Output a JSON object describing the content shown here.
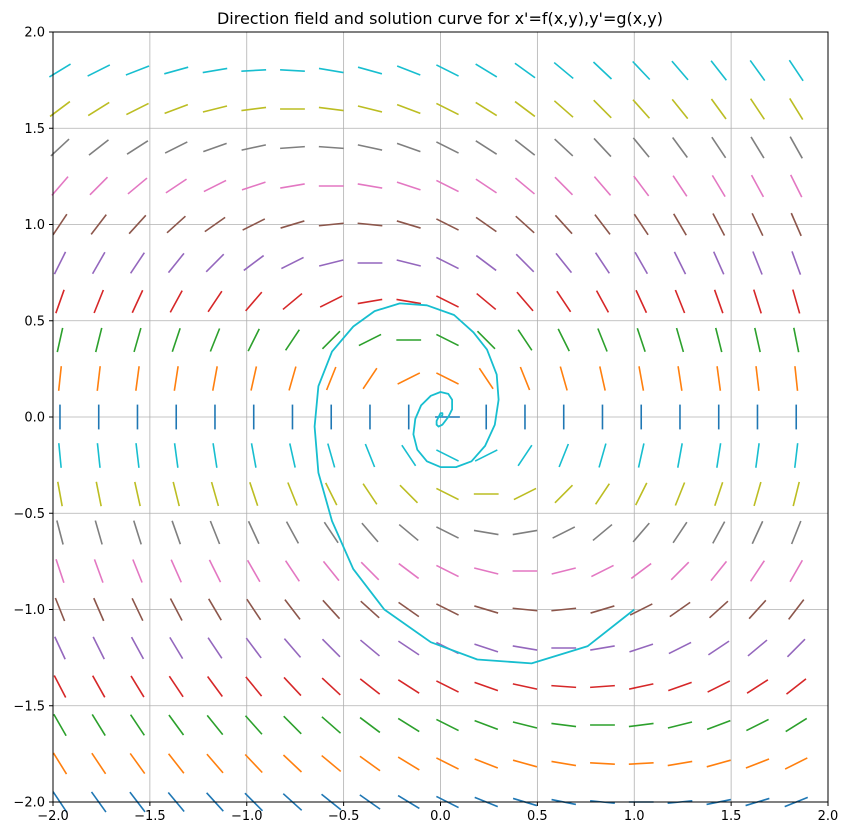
{
  "chart_data": {
    "type": "line",
    "title": "Direction field and solution curve for x'=f(x,y),y'=g(x,y)",
    "xlabel": "",
    "ylabel": "",
    "xlim": [
      -2.0,
      2.0
    ],
    "ylim": [
      -2.0,
      2.0
    ],
    "grid": true,
    "x_ticks": [
      -2.0,
      -1.5,
      -1.0,
      -0.5,
      0.0,
      0.5,
      1.0,
      1.5,
      2.0
    ],
    "x_tick_labels": [
      "−2.0",
      "−1.5",
      "−1.0",
      "−0.5",
      "0.0",
      "0.5",
      "1.0",
      "1.5",
      "2.0"
    ],
    "y_ticks": [
      -2.0,
      -1.5,
      -1.0,
      -0.5,
      0.0,
      0.5,
      1.0,
      1.5,
      2.0
    ],
    "y_tick_labels": [
      "−2.0",
      "−1.5",
      "−1.0",
      "−0.5",
      "0.0",
      "0.5",
      "1.0",
      "1.5",
      "2.0"
    ],
    "direction_field": {
      "x_start": -2.0,
      "x_end": 2.0,
      "y_start": -2.0,
      "y_end": 2.0,
      "count": 20,
      "row_colors": [
        "#1f77b4",
        "#ff7f0e",
        "#2ca02c",
        "#d62728",
        "#9467bd",
        "#8c564b",
        "#e377c2",
        "#7f7f7f",
        "#bcbd22",
        "#17becf"
      ]
    },
    "series": [
      {
        "color": "#17becf",
        "x": [
          1.0,
          0.76,
          0.47,
          0.19,
          -0.05,
          -0.29,
          -0.45,
          -0.56,
          -0.63,
          -0.65,
          -0.63,
          -0.56,
          -0.45,
          -0.34,
          -0.21,
          -0.07,
          0.07,
          0.17,
          0.24,
          0.29,
          0.3,
          0.28,
          0.23,
          0.16,
          0.08,
          0.0,
          -0.07,
          -0.12,
          -0.14,
          -0.13,
          -0.1,
          -0.05,
          0.0,
          0.04,
          0.06,
          0.06,
          0.04,
          0.01,
          -0.01,
          -0.02,
          -0.02,
          -0.01,
          0.0,
          0.01,
          0.01,
          0.0
        ],
        "y": [
          -1.0,
          -1.19,
          -1.28,
          -1.26,
          -1.17,
          -1.0,
          -0.79,
          -0.54,
          -0.29,
          -0.05,
          0.16,
          0.34,
          0.47,
          0.55,
          0.59,
          0.58,
          0.53,
          0.44,
          0.35,
          0.22,
          0.09,
          -0.04,
          -0.15,
          -0.23,
          -0.26,
          -0.26,
          -0.23,
          -0.17,
          -0.09,
          -0.01,
          0.06,
          0.11,
          0.13,
          0.12,
          0.09,
          0.04,
          0.0,
          -0.04,
          -0.05,
          -0.04,
          -0.02,
          0.0,
          0.02,
          0.02,
          0.01,
          0.0
        ]
      }
    ]
  }
}
